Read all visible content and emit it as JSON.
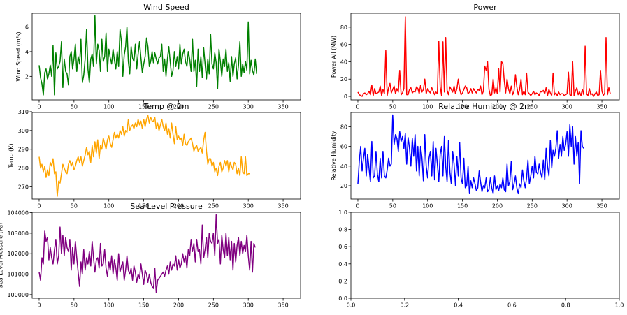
{
  "chart_data": [
    {
      "type": "line",
      "title": "Wind Speed",
      "xlabel": "",
      "ylabel": "Wind Speed (m/s)",
      "color": "#008000",
      "xlim": [
        -10,
        375
      ],
      "ylim": [
        0.1,
        7.1
      ],
      "xticks": [
        0,
        50,
        100,
        150,
        200,
        250,
        300,
        350
      ],
      "yticks": [
        2,
        4,
        6
      ],
      "x_start": 0,
      "x_step": 2,
      "values": [
        2.9,
        1.9,
        1.4,
        0.5,
        2.3,
        2.6,
        1.8,
        2.2,
        2.9,
        2.0,
        4.5,
        0.5,
        3.9,
        2.6,
        2.8,
        3.2,
        4.8,
        1.1,
        3.4,
        2.4,
        2.2,
        1.3,
        3.6,
        4.0,
        2.6,
        3.4,
        4.6,
        2.4,
        3.6,
        3.0,
        5.0,
        1.5,
        2.1,
        3.4,
        5.8,
        2.6,
        1.5,
        3.4,
        3.8,
        2.8,
        6.9,
        3.0,
        4.6,
        4.1,
        2.4,
        5.0,
        3.2,
        3.6,
        5.5,
        2.4,
        4.2,
        3.5,
        3.0,
        4.2,
        3.3,
        2.6,
        4.0,
        2.8,
        5.8,
        4.8,
        2.0,
        3.7,
        4.4,
        6.0,
        3.2,
        2.2,
        4.4,
        3.5,
        3.2,
        4.6,
        2.6,
        3.8,
        4.8,
        3.5,
        2.3,
        3.0,
        3.6,
        5.1,
        4.4,
        2.8,
        3.2,
        4.0,
        3.1,
        3.9,
        3.4,
        3.0,
        3.5,
        3.6,
        4.6,
        2.4,
        3.4,
        2.0,
        3.4,
        4.4,
        3.2,
        2.0,
        2.5,
        4.0,
        2.8,
        3.6,
        2.6,
        4.6,
        3.0,
        3.8,
        4.2,
        3.2,
        2.8,
        4.0,
        3.4,
        2.4,
        5.0,
        2.4,
        3.3,
        1.2,
        4.2,
        2.4,
        3.6,
        1.9,
        4.3,
        3.0,
        1.8,
        3.4,
        2.2,
        5.4,
        3.0,
        2.6,
        3.9,
        3.1,
        1.0,
        4.2,
        3.2,
        2.0,
        3.4,
        2.8,
        4.2,
        2.4,
        3.1,
        1.6,
        3.6,
        2.0,
        3.0,
        3.5,
        1.8,
        2.9,
        4.8,
        2.0,
        3.0,
        2.3,
        3.2,
        2.5,
        6.4,
        2.2,
        3.3,
        2.5,
        2.1,
        3.4,
        2.2
      ]
    },
    {
      "type": "line",
      "title": "Power",
      "xlabel": "",
      "ylabel": "Power All (MW)",
      "color": "#ff0000",
      "xlim": [
        -10,
        375
      ],
      "ylim": [
        -4,
        96
      ],
      "xticks": [
        0,
        50,
        100,
        150,
        200,
        250,
        300,
        350
      ],
      "yticks": [
        0,
        20,
        40,
        60,
        80
      ],
      "x_start": 0,
      "x_step": 2,
      "values": [
        5,
        2,
        1,
        0,
        3,
        4,
        2,
        3,
        6,
        2,
        13,
        1,
        9,
        3,
        4,
        5,
        12,
        1,
        8,
        3,
        53,
        1,
        10,
        15,
        4,
        8,
        12,
        3,
        9,
        5,
        30,
        2,
        4,
        9,
        92,
        2,
        2,
        8,
        10,
        4,
        6,
        5,
        11,
        9,
        3,
        13,
        5,
        8,
        20,
        3,
        9,
        6,
        4,
        10,
        6,
        2,
        5,
        3,
        64,
        11,
        1,
        63,
        5,
        68,
        7,
        2,
        11,
        8,
        5,
        12,
        3,
        9,
        20,
        8,
        2,
        4,
        8,
        12,
        10,
        3,
        5,
        9,
        4,
        9,
        6,
        4,
        8,
        7,
        12,
        2,
        6,
        35,
        30,
        40,
        8,
        1,
        2,
        20,
        4,
        10,
        3,
        32,
        5,
        40,
        38,
        18,
        4,
        20,
        9,
        3,
        12,
        2,
        6,
        25,
        11,
        2,
        8,
        20,
        2,
        6,
        2,
        27,
        5,
        3,
        1,
        3,
        6,
        2,
        4,
        3,
        1,
        6,
        5,
        7,
        3,
        10,
        1,
        8,
        4,
        1,
        27,
        2,
        4,
        1,
        5,
        2,
        3,
        3,
        1,
        2,
        3,
        28,
        2,
        1,
        40,
        1,
        6,
        10,
        2,
        5,
        1,
        8,
        2,
        58,
        3,
        1,
        9,
        2,
        3,
        0,
        3,
        5,
        1,
        2,
        30,
        6,
        1,
        4,
        68,
        2,
        10,
        3
      ]
    },
    {
      "type": "line",
      "title": "Temp @ 2m",
      "xlabel": "",
      "ylabel": "Temp (K)",
      "color": "#ffa500",
      "xlim": [
        -10,
        375
      ],
      "ylim": [
        263.5,
        309.6
      ],
      "xticks": [
        0,
        50,
        100,
        150,
        200,
        250,
        300,
        350
      ],
      "yticks": [
        270,
        280,
        290,
        300,
        310
      ],
      "x_start": 0,
      "x_step": 2,
      "values": [
        286,
        280,
        282,
        278,
        281,
        275,
        279,
        276,
        283,
        281,
        285,
        277,
        278,
        265,
        273,
        272,
        277,
        282,
        280,
        278,
        277,
        282,
        284,
        281,
        283,
        279,
        281,
        284,
        286,
        283,
        286,
        281,
        284,
        287,
        291,
        287,
        289,
        283,
        292,
        286,
        294,
        288,
        295,
        285,
        292,
        290,
        296,
        293,
        290,
        295,
        297,
        293,
        291,
        295,
        299,
        296,
        298,
        296,
        300,
        298,
        302,
        297,
        300,
        299,
        306,
        300,
        302,
        303,
        301,
        304,
        302,
        306,
        303,
        305,
        301,
        306,
        302,
        306,
        308,
        304,
        307,
        305,
        305,
        307,
        301,
        304,
        300,
        303,
        306,
        302,
        300,
        304,
        298,
        301,
        296,
        304,
        298,
        293,
        302,
        295,
        297,
        295,
        296,
        292,
        298,
        293,
        292,
        294,
        295,
        296,
        293,
        289,
        291,
        292,
        289,
        290,
        291,
        288,
        295,
        299,
        289,
        282,
        285,
        285,
        281,
        283,
        278,
        280,
        276,
        281,
        283,
        278,
        280,
        284,
        281,
        284,
        278,
        283,
        281,
        279,
        283,
        282,
        277,
        280,
        276,
        286,
        278,
        277,
        286,
        276,
        277,
        277
      ]
    },
    {
      "type": "line",
      "title": "Relative Humidity @ 2m",
      "xlabel": "",
      "ylabel": "Relative Humidity",
      "color": "#0000ff",
      "xlim": [
        -10,
        375
      ],
      "ylim": [
        6.5,
        94.5
      ],
      "xticks": [
        0,
        50,
        100,
        150,
        200,
        250,
        300,
        350
      ],
      "yticks": [
        20,
        40,
        60,
        80
      ],
      "x_start": 0,
      "x_step": 2,
      "values": [
        22,
        45,
        60,
        35,
        48,
        58,
        30,
        52,
        38,
        24,
        65,
        28,
        30,
        55,
        32,
        24,
        48,
        28,
        55,
        30,
        28,
        36,
        48,
        40,
        42,
        92,
        62,
        72,
        68,
        55,
        75,
        65,
        70,
        58,
        73,
        42,
        69,
        58,
        40,
        68,
        50,
        72,
        35,
        60,
        30,
        60,
        48,
        25,
        72,
        40,
        28,
        48,
        55,
        30,
        65,
        26,
        58,
        42,
        24,
        52,
        60,
        30,
        70,
        40,
        24,
        66,
        34,
        22,
        55,
        42,
        20,
        50,
        30,
        64,
        28,
        22,
        48,
        18,
        20,
        40,
        12,
        25,
        18,
        28,
        22,
        15,
        18,
        35,
        24,
        14,
        20,
        18,
        28,
        14,
        16,
        28,
        18,
        12,
        30,
        16,
        20,
        15,
        22,
        18,
        28,
        16,
        14,
        42,
        20,
        24,
        45,
        16,
        22,
        30,
        18,
        12,
        22,
        18,
        36,
        25,
        18,
        28,
        46,
        22,
        30,
        40,
        28,
        50,
        34,
        32,
        42,
        34,
        28,
        46,
        26,
        58,
        40,
        30,
        66,
        38,
        56,
        50,
        58,
        76,
        48,
        62,
        50,
        70,
        56,
        62,
        75,
        50,
        82,
        60,
        80,
        42,
        70,
        50,
        64,
        22,
        76,
        60,
        58
      ]
    },
    {
      "type": "line",
      "title": "Sea Level Pressure",
      "xlabel": "",
      "ylabel": "Sea Level Pressure (Pa)",
      "color": "#800080",
      "xlim": [
        -10,
        375
      ],
      "ylim": [
        99825,
        104020
      ],
      "xticks": [
        0,
        50,
        100,
        150,
        200,
        250,
        300,
        350
      ],
      "yticks": [
        100000,
        101000,
        102000,
        103000,
        104000
      ],
      "x_start": 0,
      "x_step": 2,
      "values": [
        101100,
        100700,
        101800,
        101500,
        103100,
        102600,
        102800,
        101700,
        102300,
        101800,
        101500,
        102200,
        102700,
        101500,
        101900,
        103300,
        102000,
        102900,
        101900,
        102800,
        102300,
        102100,
        102700,
        101200,
        102300,
        101500,
        102600,
        101800,
        101100,
        100400,
        101600,
        101000,
        102200,
        101200,
        101800,
        101500,
        102100,
        101400,
        102600,
        101800,
        101100,
        101700,
        101800,
        101300,
        102500,
        101400,
        101500,
        102200,
        101300,
        100900,
        101600,
        101200,
        101900,
        101000,
        101700,
        101300,
        100700,
        102000,
        101100,
        101400,
        101600,
        100700,
        101200,
        101900,
        101200,
        101000,
        101300,
        100700,
        101400,
        101100,
        100600,
        101000,
        100800,
        101500,
        101000,
        100500,
        101200,
        101000,
        100600,
        101000,
        100600,
        100400,
        100300,
        101300,
        100100,
        100700,
        100800,
        100900,
        101000,
        101100,
        100900,
        101200,
        101400,
        101000,
        101600,
        101200,
        101500,
        101400,
        101900,
        101200,
        101700,
        101300,
        101500,
        102000,
        101600,
        101900,
        101300,
        102200,
        101900,
        102700,
        102100,
        102500,
        101600,
        102700,
        102100,
        102200,
        101500,
        103400,
        101800,
        102200,
        102800,
        101800,
        103000,
        102600,
        102500,
        103000,
        101900,
        103900,
        102500,
        102700,
        101500,
        102900,
        102200,
        101800,
        103000,
        101900,
        102800,
        101700,
        102600,
        101200,
        102500,
        101600,
        102400,
        102800,
        101900,
        102600,
        102000,
        102400,
        102100,
        102900,
        101900,
        101200,
        102600,
        101100,
        102500,
        102300
      ]
    },
    {
      "type": "line",
      "title": "",
      "xlabel": "",
      "ylabel": "",
      "color": "#000000",
      "xlim": [
        0,
        1
      ],
      "ylim": [
        0,
        1
      ],
      "xticks": [
        0.0,
        0.2,
        0.4,
        0.6,
        0.8,
        1.0
      ],
      "yticks": [
        0.0,
        0.2,
        0.4,
        0.6,
        0.8,
        1.0
      ],
      "tick_decimals": 1,
      "values": []
    }
  ]
}
